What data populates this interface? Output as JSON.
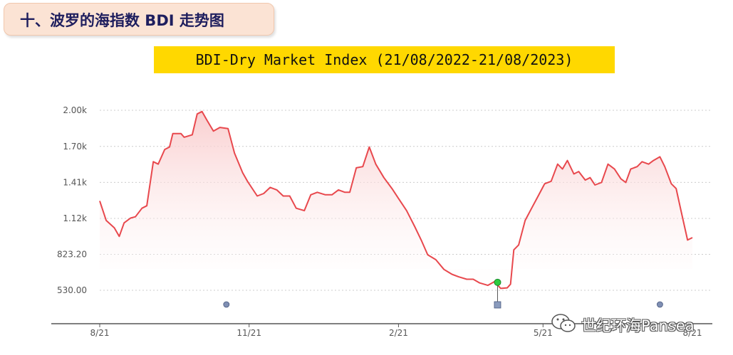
{
  "header": {
    "title": "十、波罗的海指数 BDI 走势图"
  },
  "chart_title": "BDI-Dry Market Index (21/08/2022-21/08/2023)",
  "watermark": {
    "text": "世纪环海Pansea",
    "icon": "wechat-icon"
  },
  "colors": {
    "line": "#e8484d",
    "fill_top": "#f9c9ca",
    "grid": "#cccccc",
    "axis": "#555555",
    "marker_dot": "#7f8fb3",
    "marker_green": "#2ecc40",
    "marker_square": "#8a9bbd"
  },
  "chart_data": {
    "type": "area",
    "title": "BDI-Dry Market Index (21/08/2022-21/08/2023)",
    "xlabel": "",
    "ylabel": "",
    "x_start": "2022-08-21",
    "x_end": "2023-08-21",
    "x_ticks": [
      "8/21",
      "11/21",
      "2/21",
      "5/21",
      "8/21"
    ],
    "y_ticks": [
      "530.00",
      "823.20",
      "1.12k",
      "1.41k",
      "1.70k",
      "2.00k"
    ],
    "ylim": [
      530,
      2000
    ],
    "grid": true,
    "series": [
      {
        "values": [
          [
            "2022-08-21",
            1260
          ],
          [
            "2022-08-25",
            1100
          ],
          [
            "2022-08-30",
            1040
          ],
          [
            "2022-09-02",
            970
          ],
          [
            "2022-09-05",
            1080
          ],
          [
            "2022-09-09",
            1120
          ],
          [
            "2022-09-12",
            1130
          ],
          [
            "2022-09-16",
            1200
          ],
          [
            "2022-09-19",
            1220
          ],
          [
            "2022-09-23",
            1580
          ],
          [
            "2022-09-26",
            1560
          ],
          [
            "2022-09-30",
            1680
          ],
          [
            "2022-10-03",
            1700
          ],
          [
            "2022-10-05",
            1810
          ],
          [
            "2022-10-10",
            1810
          ],
          [
            "2022-10-12",
            1780
          ],
          [
            "2022-10-17",
            1800
          ],
          [
            "2022-10-20",
            1970
          ],
          [
            "2022-10-23",
            1990
          ],
          [
            "2022-10-26",
            1920
          ],
          [
            "2022-10-30",
            1830
          ],
          [
            "2022-11-03",
            1860
          ],
          [
            "2022-11-08",
            1850
          ],
          [
            "2022-11-12",
            1650
          ],
          [
            "2022-11-17",
            1490
          ],
          [
            "2022-11-20",
            1420
          ],
          [
            "2022-11-26",
            1300
          ],
          [
            "2022-11-30",
            1320
          ],
          [
            "2022-12-04",
            1370
          ],
          [
            "2022-12-08",
            1350
          ],
          [
            "2022-12-12",
            1300
          ],
          [
            "2022-12-16",
            1300
          ],
          [
            "2022-12-20",
            1200
          ],
          [
            "2022-12-25",
            1180
          ],
          [
            "2022-12-29",
            1310
          ],
          [
            "2023-01-02",
            1330
          ],
          [
            "2023-01-07",
            1310
          ],
          [
            "2023-01-11",
            1310
          ],
          [
            "2023-01-15",
            1350
          ],
          [
            "2023-01-19",
            1330
          ],
          [
            "2023-01-22",
            1330
          ],
          [
            "2023-01-26",
            1530
          ],
          [
            "2023-01-30",
            1540
          ],
          [
            "2023-02-03",
            1700
          ],
          [
            "2023-02-07",
            1560
          ],
          [
            "2023-02-12",
            1450
          ],
          [
            "2023-02-17",
            1360
          ],
          [
            "2023-02-21",
            1280
          ],
          [
            "2023-02-26",
            1180
          ],
          [
            "2023-03-03",
            1050
          ],
          [
            "2023-03-07",
            940
          ],
          [
            "2023-03-11",
            820
          ],
          [
            "2023-03-16",
            780
          ],
          [
            "2023-03-21",
            700
          ],
          [
            "2023-03-26",
            660
          ],
          [
            "2023-03-30",
            640
          ],
          [
            "2023-04-04",
            620
          ],
          [
            "2023-04-08",
            620
          ],
          [
            "2023-04-12",
            590
          ],
          [
            "2023-04-17",
            570
          ],
          [
            "2023-04-21",
            600
          ],
          [
            "2023-04-25",
            545
          ],
          [
            "2023-04-29",
            550
          ],
          [
            "2023-05-01",
            580
          ],
          [
            "2023-05-03",
            860
          ],
          [
            "2023-05-06",
            900
          ],
          [
            "2023-05-10",
            1100
          ],
          [
            "2023-05-14",
            1200
          ],
          [
            "2023-05-18",
            1300
          ],
          [
            "2023-05-22",
            1400
          ],
          [
            "2023-05-26",
            1420
          ],
          [
            "2023-05-30",
            1560
          ],
          [
            "2023-06-02",
            1520
          ],
          [
            "2023-06-05",
            1590
          ],
          [
            "2023-06-09",
            1480
          ],
          [
            "2023-06-12",
            1500
          ],
          [
            "2023-06-16",
            1430
          ],
          [
            "2023-06-19",
            1450
          ],
          [
            "2023-06-22",
            1390
          ],
          [
            "2023-06-26",
            1410
          ],
          [
            "2023-06-30",
            1560
          ],
          [
            "2023-07-04",
            1520
          ],
          [
            "2023-07-08",
            1440
          ],
          [
            "2023-07-11",
            1410
          ],
          [
            "2023-07-14",
            1520
          ],
          [
            "2023-07-18",
            1540
          ],
          [
            "2023-07-21",
            1580
          ],
          [
            "2023-07-25",
            1560
          ],
          [
            "2023-07-28",
            1590
          ],
          [
            "2023-08-01",
            1620
          ],
          [
            "2023-08-04",
            1540
          ],
          [
            "2023-08-08",
            1400
          ],
          [
            "2023-08-11",
            1360
          ],
          [
            "2023-08-14",
            1180
          ],
          [
            "2023-08-18",
            940
          ],
          [
            "2023-08-21",
            960
          ]
        ]
      }
    ]
  }
}
